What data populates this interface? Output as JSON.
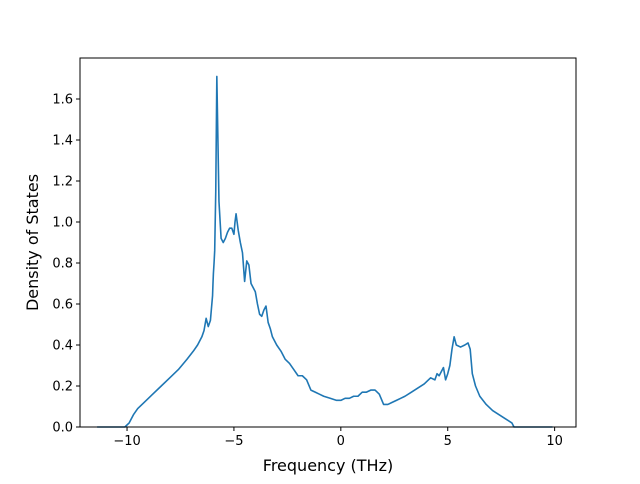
{
  "chart_data": {
    "type": "line",
    "title": "",
    "xlabel": "Frequency (THz)",
    "ylabel": "Density of States",
    "xlim": [
      -12.2,
      11.0
    ],
    "ylim": [
      0.0,
      1.8
    ],
    "xticks": [
      -10,
      -5,
      0,
      5,
      10
    ],
    "yticks": [
      0.0,
      0.2,
      0.4,
      0.6,
      0.8,
      1.0,
      1.2,
      1.4,
      1.6
    ],
    "xtick_labels": [
      "−10",
      "−5",
      "0",
      "5",
      "10"
    ],
    "ytick_labels": [
      "0.0",
      "0.2",
      "0.4",
      "0.6",
      "0.8",
      "1.0",
      "1.2",
      "1.4",
      "1.6"
    ],
    "grid": false,
    "legend": "none",
    "colors": {
      "line": "#1f77b4",
      "axes": "#000000",
      "background": "#ffffff"
    },
    "series": [
      {
        "x": [
          -11.4,
          -10.4,
          -10.1,
          -9.9,
          -9.7,
          -9.5,
          -9.2,
          -8.8,
          -8.4,
          -8.0,
          -7.6,
          -7.2,
          -6.9,
          -6.7,
          -6.5,
          -6.4,
          -6.3,
          -6.2,
          -6.1,
          -6.05,
          -6.0,
          -5.98,
          -5.96,
          -5.93,
          -5.9,
          -5.85,
          -5.8,
          -5.7,
          -5.6,
          -5.5,
          -5.4,
          -5.3,
          -5.2,
          -5.1,
          -5.0,
          -4.95,
          -4.9,
          -4.8,
          -4.7,
          -4.6,
          -4.5,
          -4.45,
          -4.4,
          -4.3,
          -4.2,
          -4.1,
          -4.0,
          -3.9,
          -3.8,
          -3.7,
          -3.6,
          -3.5,
          -3.4,
          -3.3,
          -3.2,
          -3.0,
          -2.8,
          -2.6,
          -2.4,
          -2.2,
          -2.0,
          -1.8,
          -1.6,
          -1.4,
          -1.2,
          -1.0,
          -0.8,
          -0.5,
          -0.2,
          0.0,
          0.2,
          0.4,
          0.6,
          0.8,
          1.0,
          1.2,
          1.4,
          1.6,
          1.8,
          2.0,
          2.2,
          2.4,
          2.6,
          2.8,
          3.0,
          3.3,
          3.6,
          3.9,
          4.2,
          4.4,
          4.5,
          4.6,
          4.8,
          4.9,
          5.0,
          5.1,
          5.2,
          5.3,
          5.4,
          5.6,
          5.8,
          5.95,
          6.05,
          6.15,
          6.3,
          6.5,
          6.8,
          7.1,
          7.4,
          7.7,
          8.0,
          8.1,
          8.5,
          9.0,
          9.9
        ],
        "y": [
          0.0,
          0.0,
          0.0,
          0.02,
          0.06,
          0.09,
          0.12,
          0.16,
          0.2,
          0.24,
          0.28,
          0.33,
          0.37,
          0.4,
          0.44,
          0.47,
          0.53,
          0.49,
          0.52,
          0.58,
          0.64,
          0.7,
          0.75,
          0.8,
          0.86,
          1.15,
          1.71,
          1.1,
          0.92,
          0.9,
          0.92,
          0.95,
          0.97,
          0.97,
          0.94,
          1.0,
          1.04,
          0.96,
          0.9,
          0.85,
          0.71,
          0.76,
          0.81,
          0.79,
          0.7,
          0.68,
          0.66,
          0.6,
          0.55,
          0.54,
          0.57,
          0.59,
          0.51,
          0.48,
          0.44,
          0.4,
          0.37,
          0.33,
          0.31,
          0.28,
          0.25,
          0.25,
          0.23,
          0.18,
          0.17,
          0.16,
          0.15,
          0.14,
          0.13,
          0.13,
          0.14,
          0.14,
          0.15,
          0.15,
          0.17,
          0.17,
          0.18,
          0.18,
          0.16,
          0.11,
          0.11,
          0.12,
          0.13,
          0.14,
          0.15,
          0.17,
          0.19,
          0.21,
          0.24,
          0.23,
          0.26,
          0.25,
          0.29,
          0.23,
          0.26,
          0.3,
          0.38,
          0.44,
          0.4,
          0.39,
          0.4,
          0.41,
          0.38,
          0.26,
          0.2,
          0.15,
          0.11,
          0.08,
          0.06,
          0.04,
          0.02,
          0.0,
          0.0,
          0.0,
          0.0
        ]
      }
    ]
  }
}
